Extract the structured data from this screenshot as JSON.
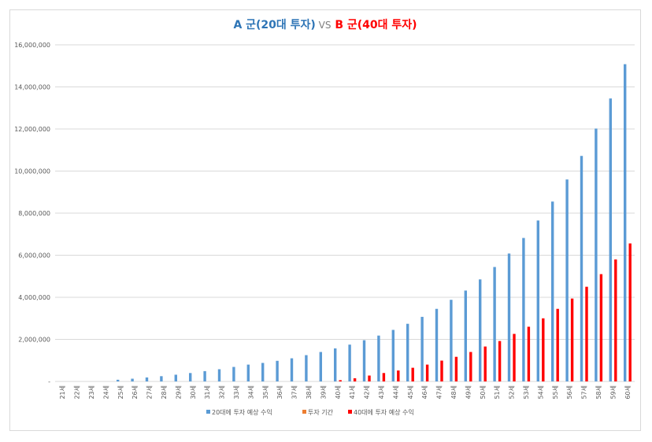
{
  "chart_data": {
    "type": "bar",
    "title_parts": [
      "A 군(20대 투자)",
      "VS",
      "B 군(40대 투자)"
    ],
    "title_colors": [
      "#2e75b6",
      "#7f7f7f",
      "#ff0000"
    ],
    "categories": [
      "21세",
      "22세",
      "23세",
      "24세",
      "25세",
      "26세",
      "27세",
      "28세",
      "29세",
      "30세",
      "31세",
      "32세",
      "33세",
      "34세",
      "35세",
      "36세",
      "37세",
      "38세",
      "39세",
      "40세",
      "41세",
      "42세",
      "43세",
      "44세",
      "45세",
      "46세",
      "47세",
      "48세",
      "49세",
      "50세",
      "51세",
      "52세",
      "53세",
      "54세",
      "55세",
      "56세",
      "57세",
      "58세",
      "59세",
      "60세"
    ],
    "series": [
      {
        "name": "20대에 투자 예상 수익",
        "color": "#5b9bd5",
        "values": [
          0,
          0,
          0,
          0,
          80000,
          130000,
          190000,
          250000,
          320000,
          400000,
          490000,
          580000,
          690000,
          800000,
          880000,
          980000,
          1100000,
          1250000,
          1400000,
          1570000,
          1750000,
          1960000,
          2180000,
          2450000,
          2740000,
          3070000,
          3450000,
          3880000,
          4320000,
          4850000,
          5440000,
          6080000,
          6820000,
          7650000,
          8550000,
          9600000,
          10720000,
          12020000,
          13450000,
          15080000
        ]
      },
      {
        "name": "투자 기간",
        "color": "#ed7d31",
        "values": [
          null,
          null,
          null,
          null,
          null,
          null,
          null,
          null,
          null,
          null,
          null,
          null,
          null,
          null,
          null,
          null,
          null,
          null,
          null,
          null,
          null,
          null,
          null,
          null,
          null,
          null,
          null,
          null,
          null,
          null,
          null,
          null,
          null,
          null,
          null,
          null,
          null,
          null,
          null,
          null
        ]
      },
      {
        "name": "40대에 투자 예상 수익",
        "color": "#ff0000",
        "values": [
          0,
          0,
          0,
          0,
          0,
          0,
          0,
          0,
          0,
          0,
          0,
          0,
          0,
          0,
          0,
          0,
          0,
          0,
          0,
          60000,
          150000,
          280000,
          400000,
          520000,
          650000,
          800000,
          990000,
          1170000,
          1400000,
          1660000,
          1920000,
          2260000,
          2600000,
          3000000,
          3450000,
          3940000,
          4500000,
          5100000,
          5800000,
          6560000
        ]
      }
    ],
    "ylim": [
      0,
      16000000
    ],
    "yticks": [
      {
        "value": 0,
        "label": "-"
      },
      {
        "value": 2000000,
        "label": "2,000,000"
      },
      {
        "value": 4000000,
        "label": "4,000,000"
      },
      {
        "value": 6000000,
        "label": "6,000,000"
      },
      {
        "value": 8000000,
        "label": "8,000,000"
      },
      {
        "value": 10000000,
        "label": "10,000,000"
      },
      {
        "value": 12000000,
        "label": "12,000,000"
      },
      {
        "value": 14000000,
        "label": "14,000,000"
      },
      {
        "value": 16000000,
        "label": "16,000,000"
      }
    ],
    "grid": true,
    "legend": "bottom"
  }
}
